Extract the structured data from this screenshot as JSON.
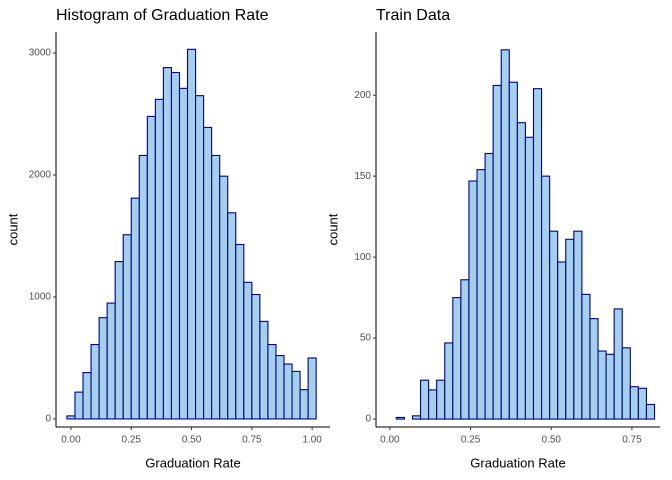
{
  "chart_data": [
    {
      "type": "histogram",
      "title": "Histogram of Graduation Rate",
      "xlabel": "Graduation Rate",
      "ylabel": "count",
      "bins": [
        -0.0167,
        0.0167,
        0.05,
        0.0833,
        0.1167,
        0.15,
        0.1833,
        0.2167,
        0.25,
        0.2833,
        0.3167,
        0.35,
        0.3833,
        0.4167,
        0.45,
        0.4833,
        0.5167,
        0.55,
        0.5833,
        0.6167,
        0.65,
        0.6833,
        0.7167,
        0.75,
        0.7833,
        0.8167,
        0.85,
        0.8833,
        0.9167,
        0.95,
        0.9833,
        1.0167
      ],
      "counts": [
        25,
        220,
        380,
        610,
        830,
        950,
        1290,
        1510,
        1810,
        2160,
        2480,
        2620,
        2880,
        2840,
        2710,
        3030,
        2650,
        2390,
        2160,
        1990,
        1690,
        1430,
        1120,
        1020,
        800,
        610,
        520,
        450,
        390,
        240,
        500
      ],
      "xlim": [
        -0.062,
        1.074
      ],
      "ylim": [
        -66,
        3172
      ],
      "xticks": [
        {
          "value": 0,
          "label": "0.00"
        },
        {
          "value": 0.25,
          "label": "0.25"
        },
        {
          "value": 0.5,
          "label": "0.50"
        },
        {
          "value": 0.75,
          "label": "0.75"
        },
        {
          "value": 1,
          "label": "1.00"
        }
      ],
      "yticks": [
        0,
        1000,
        2000,
        3000
      ],
      "color": "#a4d0ea",
      "edgecolor": "#00008b"
    },
    {
      "type": "histogram",
      "title": "Train Data",
      "xlabel": "Graduation Rate",
      "ylabel": "count",
      "bins": [
        0.02,
        0.045,
        0.07,
        0.095,
        0.12,
        0.145,
        0.17,
        0.195,
        0.22,
        0.245,
        0.27,
        0.295,
        0.32,
        0.345,
        0.37,
        0.395,
        0.42,
        0.445,
        0.47,
        0.495,
        0.52,
        0.545,
        0.57,
        0.595,
        0.62,
        0.645,
        0.67,
        0.695,
        0.72,
        0.745,
        0.77,
        0.795,
        0.82
      ],
      "counts": [
        1,
        0,
        2,
        24,
        18,
        24,
        47,
        75,
        86,
        147,
        154,
        164,
        206,
        228,
        208,
        183,
        174,
        204,
        150,
        116,
        97,
        111,
        116,
        77,
        62,
        42,
        40,
        68,
        44,
        20,
        19,
        9
      ],
      "xlim": [
        -0.043,
        0.837
      ],
      "ylim": [
        -4.9,
        239
      ],
      "xticks": [
        {
          "value": 0,
          "label": "0.00"
        },
        {
          "value": 0.25,
          "label": "0.25"
        },
        {
          "value": 0.5,
          "label": "0.50"
        },
        {
          "value": 0.75,
          "label": "0.75"
        }
      ],
      "yticks": [
        0,
        50,
        100,
        150,
        200
      ],
      "color": "#a4d0ea",
      "edgecolor": "#00008b"
    }
  ]
}
